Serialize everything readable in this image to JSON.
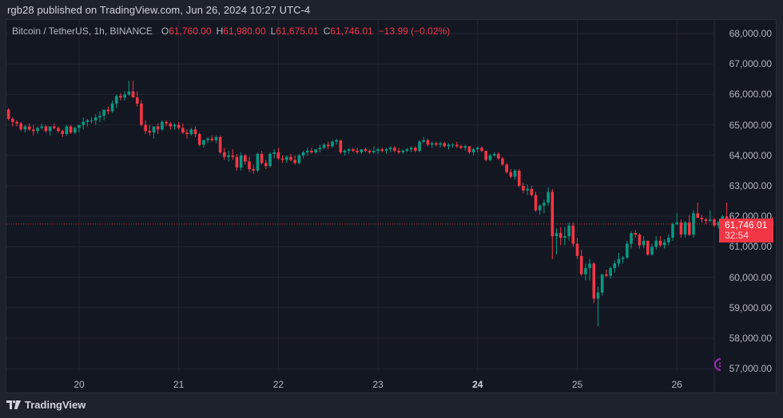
{
  "header": {
    "published_line": "rgb28 published on TradingView.com, Jun 26, 2024 10:27 UTC-4"
  },
  "legend": {
    "symbol": "Bitcoin / TetherUS, 1h, BINANCE",
    "open_label": "O",
    "open": "61,760.00",
    "high_label": "H",
    "high": "61,980.00",
    "low_label": "L",
    "low": "61,675.01",
    "close_label": "C",
    "close": "61,746.01",
    "change": "−13.99 (−0.02%)"
  },
  "last_price": {
    "value": "61,746.01",
    "countdown": "32:54",
    "price": 61746.01
  },
  "footer": {
    "brand": "TradingView"
  },
  "colors": {
    "up": "#089981",
    "down": "#f23645",
    "background": "#131722",
    "frame": "#1e222d",
    "grid": "#232632",
    "text": "#b2b5be"
  },
  "chart_data": {
    "type": "candlestick",
    "title": "Bitcoin / TetherUS, 1h, BINANCE",
    "xlabel": "",
    "ylabel": "",
    "ylim": [
      56600,
      68400
    ],
    "grid": true,
    "y_ticks": [
      "68,000.00",
      "67,000.00",
      "66,000.00",
      "65,000.00",
      "64,000.00",
      "63,000.00",
      "62,000.00",
      "61,000.00",
      "60,000.00",
      "59,000.00",
      "58,000.00",
      "57,000.00"
    ],
    "y_tick_values": [
      68000,
      67000,
      66000,
      65000,
      64000,
      63000,
      62000,
      61000,
      60000,
      59000,
      58000,
      57000
    ],
    "x_ticks": [
      {
        "label": "20",
        "bold": false
      },
      {
        "label": "21",
        "bold": false
      },
      {
        "label": "22",
        "bold": false
      },
      {
        "label": "23",
        "bold": false
      },
      {
        "label": "24",
        "bold": true
      },
      {
        "label": "25",
        "bold": false
      },
      {
        "label": "26",
        "bold": false
      }
    ],
    "interval": "1h",
    "first_candle_hour_offset": -17,
    "candles": [
      [
        65500,
        65550,
        65150,
        65200
      ],
      [
        65200,
        65250,
        64950,
        65100
      ],
      [
        65100,
        65150,
        64950,
        65050
      ],
      [
        65050,
        65100,
        64800,
        64850
      ],
      [
        64850,
        65000,
        64750,
        64950
      ],
      [
        64950,
        65050,
        64800,
        64850
      ],
      [
        64850,
        65000,
        64650,
        64800
      ],
      [
        64800,
        64950,
        64700,
        64900
      ],
      [
        64900,
        65050,
        64850,
        64950
      ],
      [
        64950,
        65000,
        64750,
        64800
      ],
      [
        64800,
        64950,
        64650,
        64950
      ],
      [
        64950,
        65050,
        64850,
        64900
      ],
      [
        64900,
        64950,
        64750,
        64800
      ],
      [
        64800,
        64850,
        64600,
        64700
      ],
      [
        64700,
        65000,
        64650,
        64950
      ],
      [
        64950,
        65000,
        64700,
        64750
      ],
      [
        64750,
        64950,
        64700,
        64900
      ],
      [
        64900,
        65000,
        64750,
        65000
      ],
      [
        65000,
        65250,
        64850,
        65100
      ],
      [
        65100,
        65200,
        64950,
        65150
      ],
      [
        65150,
        65250,
        65050,
        65150
      ],
      [
        65150,
        65350,
        65000,
        65250
      ],
      [
        65250,
        65450,
        65100,
        65300
      ],
      [
        65300,
        65500,
        65150,
        65500
      ],
      [
        65500,
        65600,
        65350,
        65450
      ],
      [
        65450,
        65800,
        65400,
        65700
      ],
      [
        65700,
        66000,
        65550,
        65950
      ],
      [
        65950,
        66050,
        65800,
        65900
      ],
      [
        65900,
        66100,
        65800,
        66000
      ],
      [
        66000,
        66450,
        65950,
        66100
      ],
      [
        66100,
        66450,
        65900,
        65900
      ],
      [
        65900,
        66100,
        65600,
        65700
      ],
      [
        65700,
        65800,
        64950,
        65000
      ],
      [
        65000,
        65150,
        64700,
        64800
      ],
      [
        64800,
        65000,
        64650,
        64750
      ],
      [
        64750,
        64950,
        64550,
        64950
      ],
      [
        64950,
        65050,
        64700,
        64850
      ],
      [
        64850,
        65150,
        64800,
        65100
      ],
      [
        65100,
        65150,
        64950,
        65050
      ],
      [
        65050,
        65100,
        64850,
        64950
      ],
      [
        64950,
        65050,
        64850,
        65000
      ],
      [
        65000,
        65100,
        64850,
        64900
      ],
      [
        64900,
        65050,
        64700,
        64750
      ],
      [
        64750,
        64850,
        64550,
        64700
      ],
      [
        64700,
        64900,
        64650,
        64850
      ],
      [
        64850,
        64950,
        64600,
        64700
      ],
      [
        64700,
        64750,
        64300,
        64350
      ],
      [
        64350,
        64500,
        64250,
        64500
      ],
      [
        64500,
        64600,
        64400,
        64550
      ],
      [
        64550,
        64650,
        64450,
        64500
      ],
      [
        64500,
        64650,
        64400,
        64600
      ],
      [
        64600,
        64650,
        64050,
        64100
      ],
      [
        64100,
        64250,
        63850,
        63950
      ],
      [
        63950,
        64150,
        63800,
        64000
      ],
      [
        64000,
        64200,
        63850,
        63950
      ],
      [
        63950,
        64050,
        63500,
        63600
      ],
      [
        63600,
        64100,
        63500,
        64000
      ],
      [
        64000,
        64050,
        63700,
        63800
      ],
      [
        63800,
        63950,
        63450,
        63550
      ],
      [
        63550,
        63700,
        63400,
        63500
      ],
      [
        63500,
        64100,
        63450,
        64050
      ],
      [
        64050,
        64150,
        63700,
        63750
      ],
      [
        63750,
        63850,
        63550,
        63650
      ],
      [
        63650,
        64100,
        63600,
        64050
      ],
      [
        64050,
        64200,
        63900,
        64100
      ],
      [
        64100,
        64250,
        63850,
        63900
      ],
      [
        63900,
        64000,
        63750,
        63850
      ],
      [
        63850,
        64000,
        63750,
        63950
      ],
      [
        63950,
        64050,
        63800,
        63850
      ],
      [
        63850,
        64000,
        63700,
        63750
      ],
      [
        63750,
        64050,
        63700,
        64000
      ],
      [
        64000,
        64150,
        63900,
        64100
      ],
      [
        64100,
        64250,
        64000,
        64150
      ],
      [
        64150,
        64250,
        64050,
        64100
      ],
      [
        64100,
        64200,
        64050,
        64200
      ],
      [
        64200,
        64350,
        64100,
        64250
      ],
      [
        64250,
        64400,
        64200,
        64350
      ],
      [
        64350,
        64450,
        64200,
        64300
      ],
      [
        64300,
        64500,
        64250,
        64450
      ],
      [
        64450,
        64550,
        64350,
        64500
      ],
      [
        64500,
        64500,
        64050,
        64100
      ],
      [
        64100,
        64200,
        64000,
        64150
      ],
      [
        64150,
        64250,
        64050,
        64200
      ],
      [
        64200,
        64250,
        64100,
        64150
      ],
      [
        64150,
        64250,
        64050,
        64100
      ],
      [
        64100,
        64200,
        64050,
        64200
      ],
      [
        64200,
        64250,
        64100,
        64150
      ],
      [
        64150,
        64200,
        64050,
        64100
      ],
      [
        64100,
        64300,
        64050,
        64150
      ],
      [
        64150,
        64250,
        64050,
        64200
      ],
      [
        64200,
        64250,
        64100,
        64150
      ],
      [
        64150,
        64250,
        64050,
        64200
      ],
      [
        64200,
        64300,
        64100,
        64250
      ],
      [
        64250,
        64300,
        64100,
        64150
      ],
      [
        64150,
        64250,
        64050,
        64100
      ],
      [
        64100,
        64200,
        64050,
        64150
      ],
      [
        64150,
        64250,
        64100,
        64200
      ],
      [
        64200,
        64300,
        64100,
        64250
      ],
      [
        64250,
        64300,
        64100,
        64150
      ],
      [
        64150,
        64500,
        64100,
        64450
      ],
      [
        64450,
        64600,
        64400,
        64500
      ],
      [
        64500,
        64550,
        64300,
        64350
      ],
      [
        64350,
        64450,
        64250,
        64400
      ],
      [
        64400,
        64450,
        64300,
        64350
      ],
      [
        64350,
        64450,
        64250,
        64400
      ],
      [
        64400,
        64450,
        64250,
        64300
      ],
      [
        64300,
        64400,
        64200,
        64350
      ],
      [
        64350,
        64400,
        64250,
        64350
      ],
      [
        64350,
        64450,
        64250,
        64300
      ],
      [
        64300,
        64350,
        64200,
        64250
      ],
      [
        64250,
        64350,
        64150,
        64300
      ],
      [
        64300,
        64300,
        64050,
        64100
      ],
      [
        64100,
        64250,
        64000,
        64200
      ],
      [
        64200,
        64300,
        64100,
        64250
      ],
      [
        64250,
        64300,
        64100,
        64150
      ],
      [
        64150,
        64150,
        63800,
        63850
      ],
      [
        63850,
        64050,
        63800,
        64000
      ],
      [
        64000,
        64100,
        63950,
        64050
      ],
      [
        64050,
        64100,
        63850,
        63900
      ],
      [
        63900,
        63950,
        63650,
        63700
      ],
      [
        63700,
        63750,
        63400,
        63450
      ],
      [
        63450,
        63550,
        63250,
        63300
      ],
      [
        63300,
        63550,
        63200,
        63500
      ],
      [
        63500,
        63550,
        62950,
        63000
      ],
      [
        63000,
        63100,
        62750,
        62850
      ],
      [
        62850,
        63050,
        62700,
        62900
      ],
      [
        62900,
        63000,
        62650,
        62700
      ],
      [
        62700,
        62800,
        62150,
        62200
      ],
      [
        62200,
        62400,
        62050,
        62350
      ],
      [
        62350,
        62550,
        62100,
        62450
      ],
      [
        62450,
        62950,
        62350,
        62800
      ],
      [
        62800,
        62900,
        60600,
        61350
      ],
      [
        61350,
        61600,
        60750,
        61450
      ],
      [
        61450,
        61650,
        61050,
        61300
      ],
      [
        61300,
        61650,
        61050,
        61350
      ],
      [
        61350,
        61800,
        61200,
        61700
      ],
      [
        61700,
        61800,
        61000,
        61100
      ],
      [
        61100,
        61300,
        60600,
        60700
      ],
      [
        60700,
        60900,
        60050,
        60100
      ],
      [
        60100,
        60450,
        59900,
        60300
      ],
      [
        60300,
        60600,
        59900,
        60450
      ],
      [
        60450,
        60500,
        59150,
        59300
      ],
      [
        59300,
        59700,
        58400,
        59500
      ],
      [
        59500,
        60100,
        59400,
        60100
      ],
      [
        60100,
        60250,
        60000,
        60050
      ],
      [
        60050,
        60350,
        59950,
        60300
      ],
      [
        60300,
        60550,
        60150,
        60450
      ],
      [
        60450,
        60800,
        60350,
        60600
      ],
      [
        60600,
        60700,
        60450,
        60650
      ],
      [
        60650,
        61200,
        60600,
        61100
      ],
      [
        61100,
        61500,
        60950,
        61450
      ],
      [
        61450,
        61550,
        61300,
        61400
      ],
      [
        61400,
        61450,
        60950,
        61050
      ],
      [
        61050,
        61350,
        60950,
        61200
      ],
      [
        61200,
        61200,
        60700,
        60750
      ],
      [
        60750,
        61100,
        60700,
        61000
      ],
      [
        61000,
        61350,
        60900,
        61200
      ],
      [
        61200,
        61350,
        61000,
        61050
      ],
      [
        61050,
        61250,
        60950,
        61150
      ],
      [
        61150,
        61400,
        61050,
        61300
      ],
      [
        61300,
        61800,
        61200,
        61750
      ],
      [
        61750,
        62100,
        61700,
        61800
      ],
      [
        61800,
        61900,
        61300,
        61400
      ],
      [
        61400,
        61850,
        61300,
        61800
      ],
      [
        61800,
        62050,
        61350,
        61400
      ],
      [
        61400,
        62200,
        61300,
        62100
      ],
      [
        62100,
        62450,
        61950,
        61950
      ],
      [
        61950,
        62050,
        61800,
        61900
      ],
      [
        61900,
        61950,
        61750,
        61850
      ],
      [
        61850,
        62200,
        61800,
        61900
      ],
      [
        61900,
        61950,
        61650,
        61700
      ],
      [
        61700,
        61850,
        61600,
        61800
      ],
      [
        61800,
        62050,
        61750,
        62000
      ],
      [
        62000,
        62450,
        61900,
        61900
      ],
      [
        61900,
        62000,
        61750,
        61800
      ],
      [
        61800,
        61850,
        61550,
        61600
      ],
      [
        61600,
        61650,
        61400,
        61450
      ],
      [
        61450,
        61750,
        61400,
        61600
      ],
      [
        61600,
        61650,
        61250,
        61300
      ],
      [
        61300,
        61400,
        61100,
        61200
      ],
      [
        61200,
        61350,
        61050,
        61250
      ],
      [
        61250,
        61400,
        61200,
        61350
      ],
      [
        61350,
        61450,
        61300,
        61400
      ],
      [
        61400,
        61800,
        61350,
        61760
      ],
      [
        61760,
        61980,
        61675,
        61746
      ]
    ]
  }
}
